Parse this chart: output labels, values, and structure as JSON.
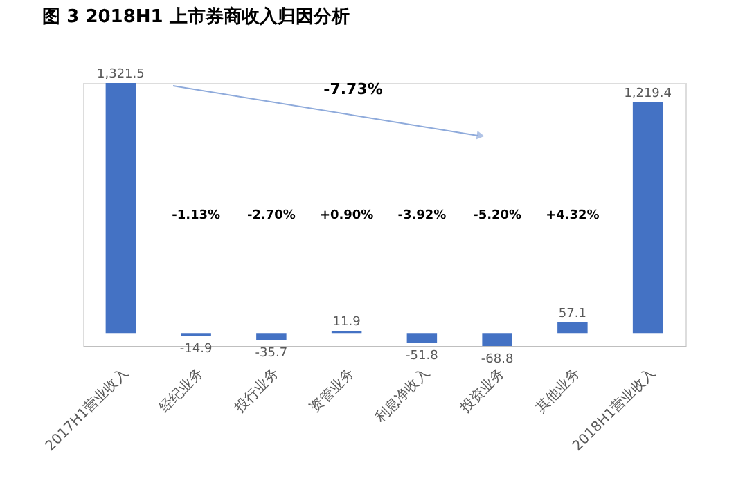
{
  "chart_data": {
    "type": "bar",
    "title": "图 3 2018H1 上市券商收入归因分析",
    "categories": [
      "2017H1营业收入",
      "经纪业务",
      "投行业务",
      "资管业务",
      "利息净收入",
      "投资业务",
      "其他业务",
      "2018H1营业收入"
    ],
    "values": [
      1321.5,
      -14.9,
      -35.7,
      11.9,
      -51.8,
      -68.8,
      57.1,
      1219.4
    ],
    "value_labels": [
      "1,321.5",
      "-14.9",
      "-35.7",
      "11.9",
      "-51.8",
      "-68.8",
      "57.1",
      "1,219.4"
    ],
    "color": "#4472c4",
    "grid": false,
    "tick_labels": "x",
    "annotations": [
      "-1.13%",
      "-2.70%",
      "+0.90%",
      "-3.92%",
      "-5.20%",
      "+4.32%",
      "-7.73%"
    ]
  }
}
